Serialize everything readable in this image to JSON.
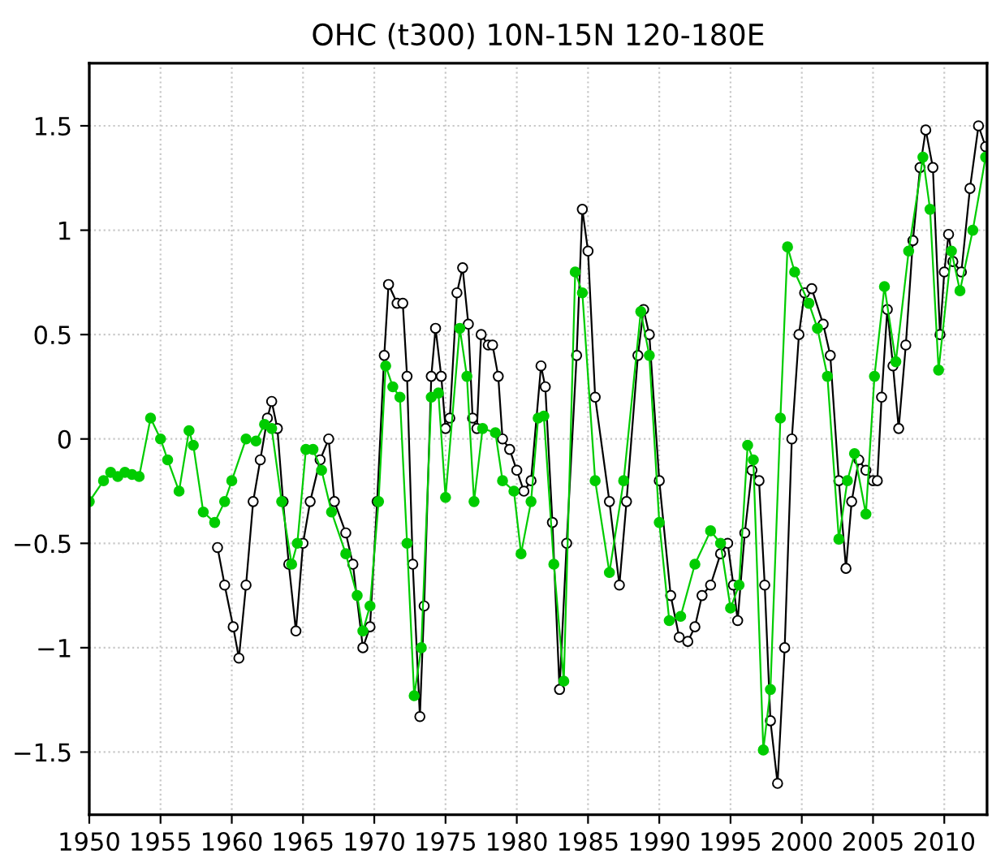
{
  "chart_data": {
    "type": "line",
    "title": "OHC (t300) 10N-15N 120-180E",
    "xlim": [
      1950,
      2013
    ],
    "ylim": [
      -1.8,
      1.8
    ],
    "xticks": [
      1950,
      1955,
      1960,
      1965,
      1970,
      1975,
      1980,
      1985,
      1990,
      1995,
      2000,
      2005,
      2010
    ],
    "yticks": [
      {
        "value": -1.5,
        "label": "−1.5"
      },
      {
        "value": -1,
        "label": "−1"
      },
      {
        "value": -0.5,
        "label": "−0.5"
      },
      0,
      0.5,
      1,
      1.5
    ],
    "grid": true,
    "marker": "circle",
    "line_style": "solid",
    "legend": false,
    "series": [
      {
        "color": "#000000",
        "x": [
          1959,
          1959.5,
          1960.1,
          1960.5,
          1961,
          1961.5,
          1962,
          1962.5,
          1962.8,
          1963.2,
          1963.6,
          1964,
          1964.5,
          1965,
          1965.5,
          1966.2,
          1966.8,
          1967.2,
          1968,
          1968.5,
          1969.2,
          1969.7,
          1970.2,
          1970.7,
          1971,
          1971.6,
          1972,
          1972.3,
          1972.7,
          1973.2,
          1973.5,
          1974,
          1974.3,
          1974.7,
          1975,
          1975.3,
          1975.8,
          1976.2,
          1976.6,
          1976.9,
          1977.2,
          1977.5,
          1978,
          1978.3,
          1978.7,
          1979,
          1979.5,
          1980,
          1980.5,
          1981,
          1981.7,
          1982,
          1982.5,
          1983,
          1983.5,
          1984.2,
          1984.6,
          1985,
          1985.5,
          1986.5,
          1987.2,
          1987.7,
          1988.5,
          1988.9,
          1989.3,
          1990,
          1990.8,
          1991.4,
          1992,
          1992.5,
          1993,
          1993.6,
          1994.3,
          1994.8,
          1995.2,
          1995.5,
          1996,
          1996.5,
          1997,
          1997.4,
          1997.8,
          1998.3,
          1998.8,
          1999.3,
          1999.8,
          2000.2,
          2000.7,
          2001.5,
          2002,
          2002.6,
          2003.1,
          2003.5,
          2004,
          2004.5,
          2005,
          2005.3,
          2005.6,
          2006,
          2006.4,
          2006.8,
          2007.3,
          2007.8,
          2008.3,
          2008.7,
          2009.2,
          2009.7,
          2010,
          2010.3,
          2010.6,
          2011.2,
          2011.8,
          2012.4,
          2012.9
        ],
        "values": [
          -0.52,
          -0.7,
          -0.9,
          -1.05,
          -0.7,
          -0.3,
          -0.1,
          0.1,
          0.18,
          0.05,
          -0.3,
          -0.6,
          -0.92,
          -0.5,
          -0.3,
          -0.1,
          0.0,
          -0.3,
          -0.45,
          -0.6,
          -1.0,
          -0.9,
          -0.3,
          0.4,
          0.74,
          0.65,
          0.65,
          0.3,
          -0.6,
          -1.33,
          -0.8,
          0.3,
          0.53,
          0.3,
          0.05,
          0.1,
          0.7,
          0.82,
          0.55,
          0.1,
          0.05,
          0.5,
          0.45,
          0.45,
          0.3,
          0.0,
          -0.05,
          -0.15,
          -0.25,
          -0.2,
          0.35,
          0.25,
          -0.4,
          -1.2,
          -0.5,
          0.4,
          1.1,
          0.9,
          0.2,
          -0.3,
          -0.7,
          -0.3,
          0.4,
          0.62,
          0.5,
          -0.2,
          -0.75,
          -0.95,
          -0.97,
          -0.9,
          -0.75,
          -0.7,
          -0.55,
          -0.5,
          -0.7,
          -0.87,
          -0.45,
          -0.15,
          -0.2,
          -0.7,
          -1.35,
          -1.65,
          -1.0,
          0.0,
          0.5,
          0.7,
          0.72,
          0.55,
          0.4,
          -0.2,
          -0.62,
          -0.3,
          -0.1,
          -0.15,
          -0.2,
          -0.2,
          0.2,
          0.62,
          0.35,
          0.05,
          0.45,
          0.95,
          1.3,
          1.48,
          1.3,
          0.5,
          0.8,
          0.98,
          0.85,
          0.8,
          1.2,
          1.5,
          1.4
        ]
      },
      {
        "color": "#00cc00",
        "x": [
          1950,
          1951,
          1951.5,
          1952,
          1952.5,
          1953,
          1953.5,
          1954.3,
          1955,
          1955.5,
          1956.3,
          1957,
          1957.3,
          1958,
          1958.8,
          1959.5,
          1960,
          1961,
          1961.7,
          1962.3,
          1962.8,
          1963.5,
          1964.2,
          1964.6,
          1965.2,
          1965.7,
          1966.3,
          1967,
          1968,
          1968.8,
          1969.2,
          1969.7,
          1970.3,
          1970.8,
          1971.3,
          1971.8,
          1972.3,
          1972.8,
          1973.3,
          1974,
          1974.5,
          1975,
          1976,
          1976.5,
          1977,
          1977.6,
          1978.5,
          1979,
          1979.8,
          1980.3,
          1981,
          1981.5,
          1981.9,
          1982.6,
          1983.3,
          1984.1,
          1984.6,
          1985.5,
          1986.5,
          1987.5,
          1988.7,
          1989.3,
          1990,
          1990.7,
          1991.5,
          1992.5,
          1993.6,
          1994.3,
          1995,
          1995.6,
          1996.2,
          1996.6,
          1997.3,
          1997.8,
          1998.5,
          1999,
          1999.5,
          2000.5,
          2001.1,
          2001.8,
          2002.6,
          2003.2,
          2003.7,
          2004.5,
          2005.1,
          2005.8,
          2006.6,
          2007.5,
          2008.5,
          2009.0,
          2009.6,
          2010.5,
          2011.1,
          2012,
          2012.9
        ],
        "values": [
          -0.3,
          -0.2,
          -0.16,
          -0.18,
          -0.16,
          -0.17,
          -0.18,
          0.1,
          0.0,
          -0.1,
          -0.25,
          0.04,
          -0.03,
          -0.35,
          -0.4,
          -0.3,
          -0.2,
          0.0,
          -0.01,
          0.07,
          0.05,
          -0.3,
          -0.6,
          -0.5,
          -0.05,
          -0.05,
          -0.15,
          -0.35,
          -0.55,
          -0.75,
          -0.92,
          -0.8,
          -0.3,
          0.35,
          0.25,
          0.2,
          -0.5,
          -1.23,
          -1.0,
          0.2,
          0.22,
          -0.28,
          0.53,
          0.3,
          -0.3,
          0.05,
          0.03,
          -0.2,
          -0.25,
          -0.55,
          -0.3,
          0.1,
          0.11,
          -0.6,
          -1.16,
          0.8,
          0.7,
          -0.2,
          -0.64,
          -0.2,
          0.61,
          0.4,
          -0.4,
          -0.87,
          -0.85,
          -0.6,
          -0.44,
          -0.5,
          -0.81,
          -0.7,
          -0.03,
          -0.1,
          -1.49,
          -1.2,
          0.1,
          0.92,
          0.8,
          0.65,
          0.53,
          0.3,
          -0.48,
          -0.2,
          -0.07,
          -0.36,
          0.3,
          0.73,
          0.37,
          0.9,
          1.35,
          1.1,
          0.33,
          0.9,
          0.71,
          1.0,
          1.35
        ]
      }
    ]
  }
}
